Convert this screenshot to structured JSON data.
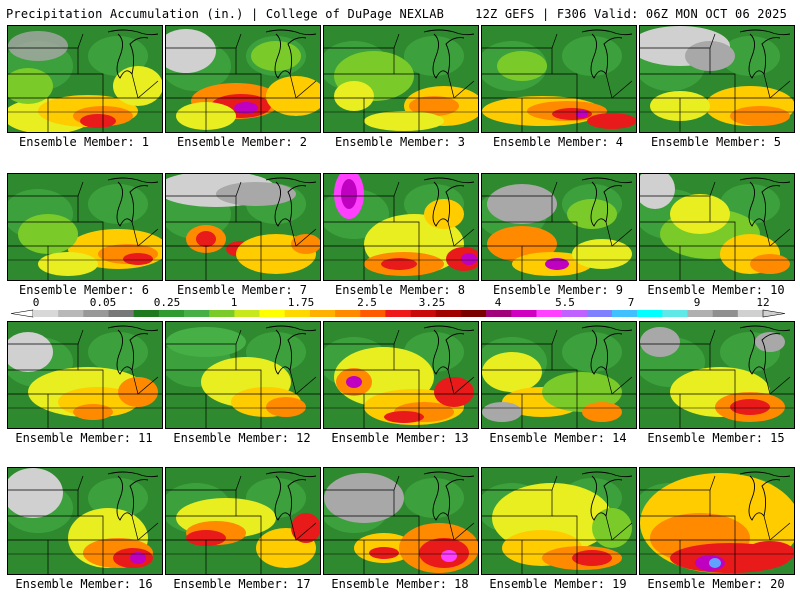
{
  "header": {
    "left": "Precipitation Accumulation (in.) | College of DuPage NEXLAB",
    "right": "12Z GEFS | F306 Valid: 06Z MON OCT 06 2025"
  },
  "panels": [
    {
      "member": 1,
      "label": "Ensemble Member: 1"
    },
    {
      "member": 2,
      "label": "Ensemble Member: 2"
    },
    {
      "member": 3,
      "label": "Ensemble Member: 3"
    },
    {
      "member": 4,
      "label": "Ensemble Member: 4"
    },
    {
      "member": 5,
      "label": "Ensemble Member: 5"
    },
    {
      "member": 6,
      "label": "Ensemble Member: 6"
    },
    {
      "member": 7,
      "label": "Ensemble Member: 7"
    },
    {
      "member": 8,
      "label": "Ensemble Member: 8"
    },
    {
      "member": 9,
      "label": "Ensemble Member: 9"
    },
    {
      "member": 10,
      "label": "Ensemble Member: 10"
    },
    {
      "member": 11,
      "label": "Ensemble Member: 11"
    },
    {
      "member": 12,
      "label": "Ensemble Member: 12"
    },
    {
      "member": 13,
      "label": "Ensemble Member: 13"
    },
    {
      "member": 14,
      "label": "Ensemble Member: 14"
    },
    {
      "member": 15,
      "label": "Ensemble Member: 15"
    },
    {
      "member": 16,
      "label": "Ensemble Member: 16"
    },
    {
      "member": 17,
      "label": "Ensemble Member: 17"
    },
    {
      "member": 18,
      "label": "Ensemble Member: 18"
    },
    {
      "member": 19,
      "label": "Ensemble Member: 19"
    },
    {
      "member": 20,
      "label": "Ensemble Member: 20"
    }
  ],
  "colorbar": {
    "tick_labels": [
      "0",
      "0.05",
      "0.25",
      "1",
      "1.75",
      "2.5",
      "3.25",
      "4",
      "5.5",
      "7",
      "9",
      "12"
    ],
    "colors": [
      "#d8d8d8",
      "#b8b8b8",
      "#989898",
      "#787878",
      "#1f7a1f",
      "#2f9a2f",
      "#46b046",
      "#7acb2a",
      "#c8e81e",
      "#ffff00",
      "#ffd800",
      "#ffb000",
      "#ff8a00",
      "#ff5a00",
      "#ee1a1a",
      "#c80a0a",
      "#a00000",
      "#7a0000",
      "#a0007a",
      "#d000c0",
      "#ff40ff",
      "#c060ff",
      "#8080ff",
      "#40c0ff",
      "#00ffff",
      "#60e8e8",
      "#b0b0b0",
      "#909090",
      "#d0d0d0"
    ]
  }
}
